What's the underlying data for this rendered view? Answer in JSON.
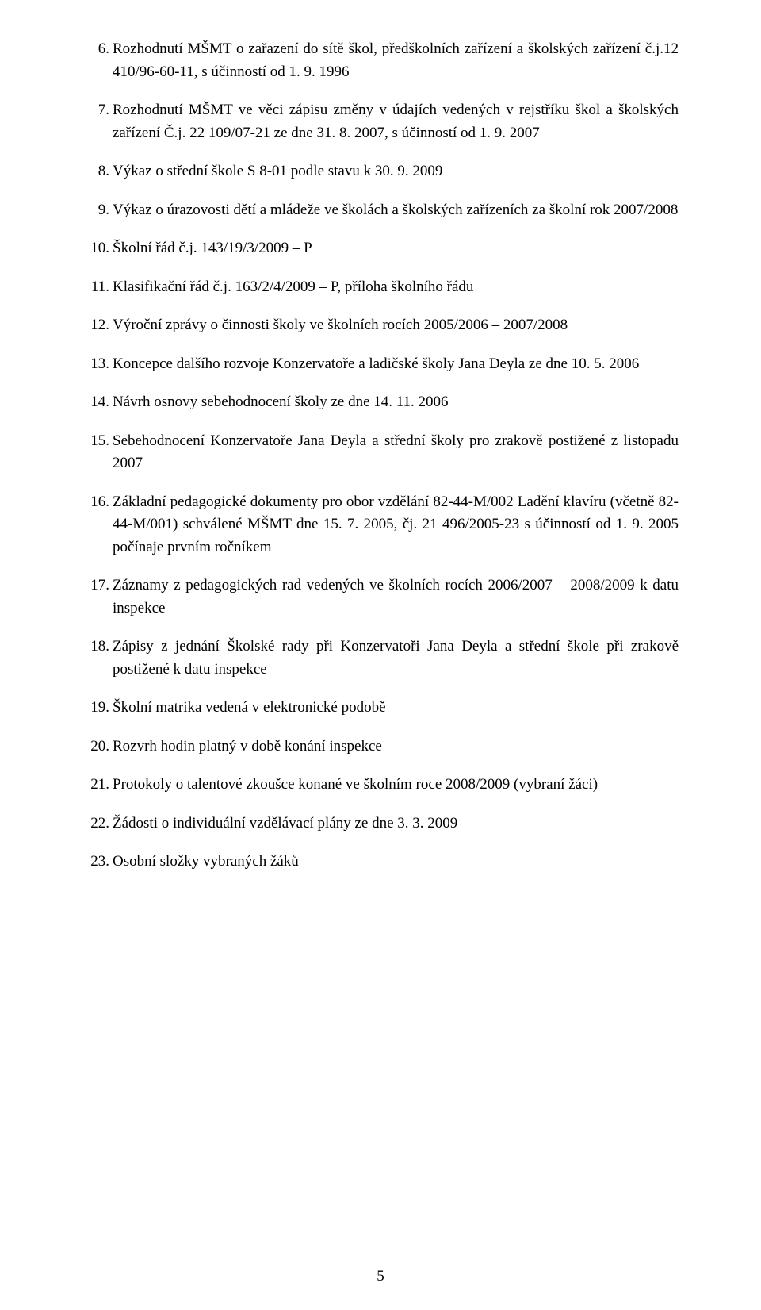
{
  "items": [
    {
      "n": "6.",
      "text": "Rozhodnutí MŠMT o zařazení do sítě škol, předškolních zařízení a školských zařízení č.j.12 410/96-60-11, s účinností od 1. 9. 1996"
    },
    {
      "n": "7.",
      "text": "Rozhodnutí MŠMT ve věci zápisu změny v údajích vedených v rejstříku škol a školských zařízení Č.j. 22 109/07-21 ze dne 31. 8. 2007, s účinností od 1. 9. 2007"
    },
    {
      "n": "8.",
      "text": "Výkaz o střední škole S 8-01 podle stavu k 30. 9. 2009"
    },
    {
      "n": "9.",
      "text": "Výkaz o úrazovosti dětí a mládeže ve školách a školských zařízeních za školní rok 2007/2008"
    },
    {
      "n": "10.",
      "text": "Školní řád č.j. 143/19/3/2009 – P"
    },
    {
      "n": "11.",
      "text": "Klasifikační řád č.j. 163/2/4/2009 – P, příloha školního řádu"
    },
    {
      "n": "12.",
      "text": "Výroční zprávy o činnosti školy ve školních rocích 2005/2006 – 2007/2008"
    },
    {
      "n": "13.",
      "text": "Koncepce dalšího rozvoje Konzervatoře a ladičské školy Jana Deyla ze dne 10. 5. 2006"
    },
    {
      "n": "14.",
      "text": "Návrh osnovy sebehodnocení školy ze dne 14. 11. 2006"
    },
    {
      "n": "15.",
      "text": "Sebehodnocení Konzervatoře Jana Deyla a střední školy pro zrakově postižené z listopadu 2007"
    },
    {
      "n": "16.",
      "text": "Základní pedagogické dokumenty pro obor vzdělání 82-44-M/002 Ladění klavíru (včetně 82-44-M/001) schválené MŠMT dne 15. 7. 2005, čj. 21 496/2005-23 s účinností od 1. 9. 2005 počínaje prvním ročníkem"
    },
    {
      "n": "17.",
      "text": "Záznamy z pedagogických rad vedených ve školních rocích 2006/2007 – 2008/2009 k datu inspekce"
    },
    {
      "n": "18.",
      "text": "Zápisy z jednání Školské rady při Konzervatoři Jana Deyla a střední škole při zrakově postižené k datu inspekce"
    },
    {
      "n": "19.",
      "text": "Školní matrika vedená v elektronické podobě"
    },
    {
      "n": "20.",
      "text": "Rozvrh hodin platný v době konání inspekce"
    },
    {
      "n": "21.",
      "text": "Protokoly o talentové zkoušce konané ve školním roce 2008/2009 (vybraní žáci)"
    },
    {
      "n": "22.",
      "text": "Žádosti o individuální vzdělávací plány ze dne 3. 3. 2009"
    },
    {
      "n": "23.",
      "text": "Osobní složky vybraných žáků"
    }
  ],
  "page_number": "5"
}
